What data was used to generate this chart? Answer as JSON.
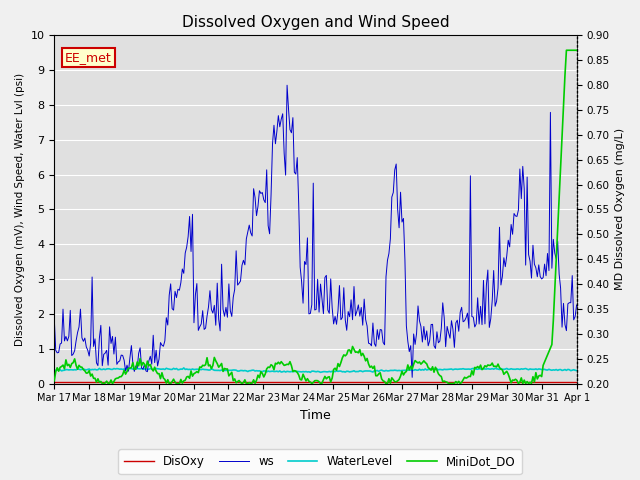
{
  "title": "Dissolved Oxygen and Wind Speed",
  "ylabel_left": "Dissolved Oxygen (mV), Wind Speed, Water Lvl (psi)",
  "ylabel_right": "MD Dissolved Oxygen (mg/L)",
  "xlabel": "Time",
  "ylim_left": [
    0.0,
    10.0
  ],
  "ylim_right": [
    0.2,
    0.9
  ],
  "yticks_left": [
    0.0,
    1.0,
    2.0,
    3.0,
    4.0,
    5.0,
    6.0,
    7.0,
    8.0,
    9.0,
    10.0
  ],
  "yticks_right": [
    0.2,
    0.25,
    0.3,
    0.35,
    0.4,
    0.45,
    0.5,
    0.55,
    0.6,
    0.65,
    0.7,
    0.75,
    0.8,
    0.85,
    0.9
  ],
  "xtick_labels": [
    "Mar 17",
    "Mar 18",
    "Mar 19",
    "Mar 20",
    "Mar 21",
    "Mar 22",
    "Mar 23",
    "Mar 24",
    "Mar 25",
    "Mar 26",
    "Mar 27",
    "Mar 28",
    "Mar 29",
    "Mar 30",
    "Mar 31",
    "Apr 1"
  ],
  "legend_labels": [
    "DisOxy",
    "ws",
    "WaterLevel",
    "MiniDot_DO"
  ],
  "disoxy_color": "#cc0000",
  "ws_color": "#0000cc",
  "waterlevel_color": "#00cccc",
  "minidot_color": "#00cc00",
  "annotation_text": "EE_met",
  "annotation_color": "#cc0000",
  "annotation_bg": "#ffffcc",
  "fig_bg": "#f0f0f0",
  "plot_bg": "#e0e0e0",
  "grid_color": "#ffffff",
  "n_days": 15,
  "n_points": 360
}
